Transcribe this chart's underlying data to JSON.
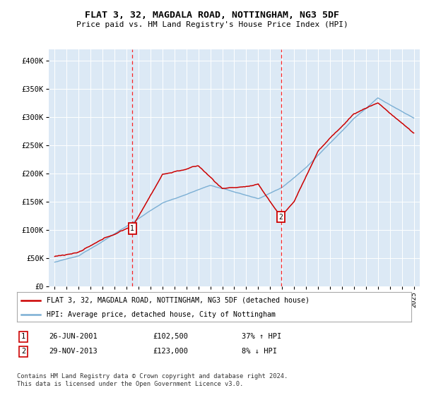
{
  "title": "FLAT 3, 32, MAGDALA ROAD, NOTTINGHAM, NG3 5DF",
  "subtitle": "Price paid vs. HM Land Registry's House Price Index (HPI)",
  "plot_bg_color": "#dce9f5",
  "ylabel_values": [
    "£0",
    "£50K",
    "£100K",
    "£150K",
    "£200K",
    "£250K",
    "£300K",
    "£350K",
    "£400K"
  ],
  "yticks": [
    0,
    50000,
    100000,
    150000,
    200000,
    250000,
    300000,
    350000,
    400000
  ],
  "xlim_start": 1994.5,
  "xlim_end": 2025.5,
  "ylim": [
    0,
    420000
  ],
  "sale1_date": 2001.48,
  "sale1_price": 102500,
  "sale2_date": 2013.91,
  "sale2_price": 123000,
  "red_line_color": "#cc0000",
  "blue_line_color": "#7bafd4",
  "legend_line1": "FLAT 3, 32, MAGDALA ROAD, NOTTINGHAM, NG3 5DF (detached house)",
  "legend_line2": "HPI: Average price, detached house, City of Nottingham",
  "footnote": "Contains HM Land Registry data © Crown copyright and database right 2024.\nThis data is licensed under the Open Government Licence v3.0.",
  "xticks": [
    1995,
    1996,
    1997,
    1998,
    1999,
    2000,
    2001,
    2002,
    2003,
    2004,
    2005,
    2006,
    2007,
    2008,
    2009,
    2010,
    2011,
    2012,
    2013,
    2014,
    2015,
    2016,
    2017,
    2018,
    2019,
    2020,
    2021,
    2022,
    2023,
    2024,
    2025
  ]
}
